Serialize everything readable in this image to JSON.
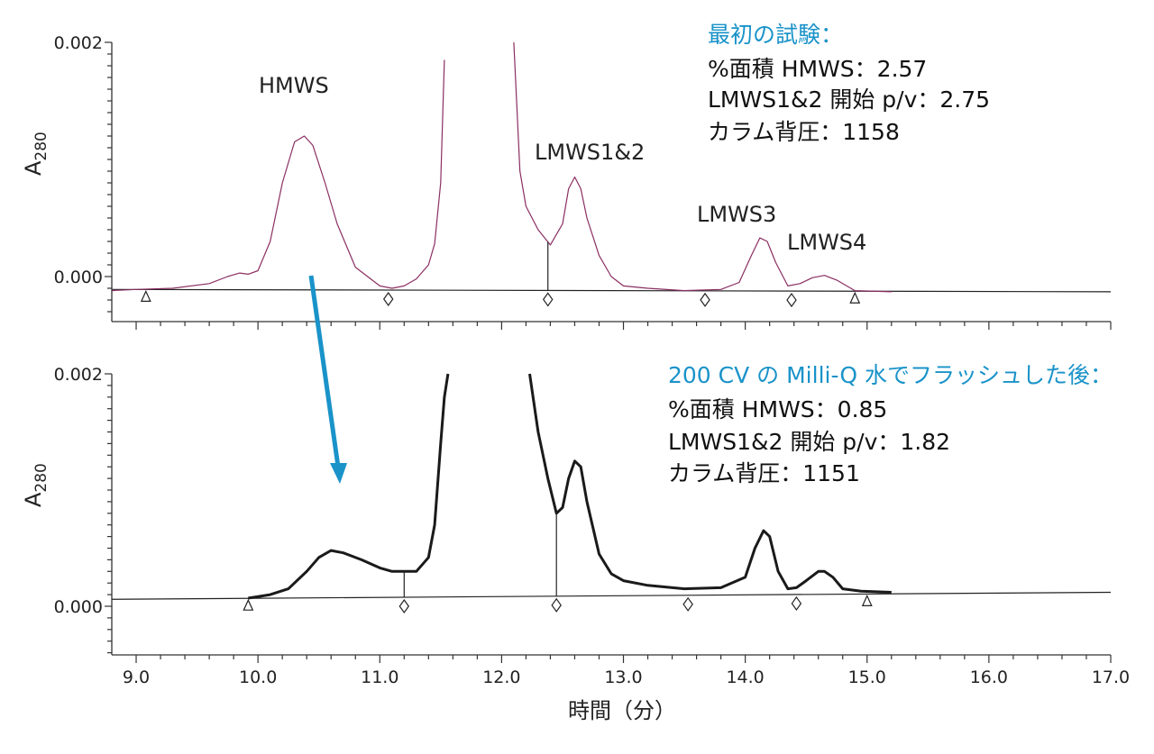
{
  "colors": {
    "accent": "#1a93c9",
    "panel1_trace": "#8a2e62",
    "panel2_trace": "#1a1a1a",
    "arrow": "#1a93c9"
  },
  "chart_data": [
    {
      "type": "line",
      "panel": "top",
      "ylabel": "A",
      "ylabel_sub": "280",
      "xlim": [
        8.8,
        17.0
      ],
      "ylim": [
        -0.0004,
        0.002
      ],
      "yticks": [
        "0.000",
        "0.002"
      ],
      "series": [
        {
          "values_x": [
            8.8,
            9.0,
            9.3,
            9.6,
            9.75,
            9.85,
            9.92,
            10.0,
            10.1,
            10.2,
            10.3,
            10.38,
            10.45,
            10.55,
            10.65,
            10.8,
            11.0,
            11.1,
            11.2,
            11.3,
            11.4,
            11.45,
            11.5,
            11.53,
            12.1,
            12.15,
            12.2,
            12.3,
            12.4,
            12.5,
            12.55,
            12.6,
            12.65,
            12.7,
            12.8,
            12.9,
            13.0,
            13.2,
            13.5,
            13.8,
            13.95,
            14.05,
            14.12,
            14.18,
            14.25,
            14.35,
            14.45,
            14.55,
            14.65,
            14.75,
            14.9,
            15.2,
            16.0,
            17.0
          ],
          "values_y": [
            -0.00012,
            -0.00011,
            -0.0001,
            -6e-05,
            0.0,
            3e-05,
            2e-05,
            5e-05,
            0.0003,
            0.0008,
            0.00115,
            0.0012,
            0.00112,
            0.0008,
            0.00045,
            8e-05,
            -8e-05,
            -0.0001,
            -8e-05,
            -2e-05,
            0.0001,
            0.00028,
            0.0008,
            0.00185,
            0.002,
            0.0009,
            0.0006,
            0.0004,
            0.00027,
            0.00045,
            0.00075,
            0.00085,
            0.00075,
            0.0005,
            0.00018,
            0.0,
            -8e-05,
            -0.0001,
            -0.00012,
            -0.00011,
            -5e-05,
            0.00018,
            0.00033,
            0.0003,
            0.00012,
            -8e-05,
            -6e-05,
            -1e-05,
            1e-05,
            -3e-05,
            -0.00012,
            -0.00013,
            -0.00014,
            -0.00016
          ]
        }
      ],
      "baseline_y": [
        -0.00011,
        -0.00013
      ],
      "triangle_markers": [
        9.08,
        14.9
      ],
      "diamond_markers": [
        11.07,
        12.38,
        13.67,
        14.38
      ],
      "droplines": [
        12.38
      ],
      "peak_labels": [
        "HMWS",
        "LMWS1&2",
        "LMWS3",
        "LMWS4"
      ],
      "info_heading": "最初の試験：",
      "info_lines": [
        "%面積 HMWS：2.57",
        "LMWS1&2 開始 p/v：2.75",
        "カラム背圧：1158"
      ]
    },
    {
      "type": "line",
      "panel": "bottom",
      "ylabel": "A",
      "ylabel_sub": "280",
      "xlabel": "時間（分）",
      "xlim": [
        8.8,
        17.0
      ],
      "ylim": [
        -0.00042,
        0.002
      ],
      "xticks": [
        "9.0",
        "10.0",
        "11.0",
        "12.0",
        "13.0",
        "14.0",
        "15.0",
        "16.0",
        "17.0"
      ],
      "yticks": [
        "0.000",
        "0.002"
      ],
      "series": [
        {
          "values_x": [
            8.8,
            9.5,
            9.92,
            10.1,
            10.25,
            10.4,
            10.5,
            10.6,
            10.7,
            10.85,
            11.0,
            11.1,
            11.2,
            11.3,
            11.4,
            11.45,
            11.5,
            11.53,
            11.56,
            12.23,
            12.3,
            12.38,
            12.45,
            12.5,
            12.55,
            12.6,
            12.65,
            12.7,
            12.8,
            12.9,
            13.0,
            13.2,
            13.5,
            13.8,
            14.0,
            14.08,
            14.15,
            14.2,
            14.27,
            14.35,
            14.42,
            14.5,
            14.6,
            14.65,
            14.72,
            14.8,
            14.95,
            15.2,
            16.0,
            17.0
          ],
          "values_y": [
            7e-05,
            7e-05,
            7e-05,
            0.0001,
            0.00015,
            0.0003,
            0.00042,
            0.00048,
            0.00046,
            0.0004,
            0.00033,
            0.0003,
            0.0003,
            0.0003,
            0.00042,
            0.0007,
            0.0014,
            0.0018,
            0.002,
            0.002,
            0.0015,
            0.0011,
            0.0008,
            0.00085,
            0.0011,
            0.00125,
            0.0012,
            0.0009,
            0.00045,
            0.00028,
            0.00022,
            0.00018,
            0.00015,
            0.00016,
            0.00025,
            0.0005,
            0.00065,
            0.0006,
            0.0003,
            0.00015,
            0.00016,
            0.00022,
            0.0003,
            0.0003,
            0.00025,
            0.00015,
            0.00013,
            0.00012,
            0.00012,
            9e-05
          ]
        }
      ],
      "baseline_y": [
        6e-05,
        0.00012
      ],
      "triangle_markers": [
        9.92,
        15.0
      ],
      "diamond_markers": [
        11.2,
        12.45,
        13.53,
        14.42
      ],
      "droplines": [
        11.2,
        12.45
      ],
      "info_heading": "200 CV の Milli-Q 水でフラッシュした後：",
      "info_lines": [
        "%面積 HMWS：0.85",
        "LMWS1&2 開始 p/v：1.82",
        "カラム背圧：1151"
      ]
    }
  ]
}
